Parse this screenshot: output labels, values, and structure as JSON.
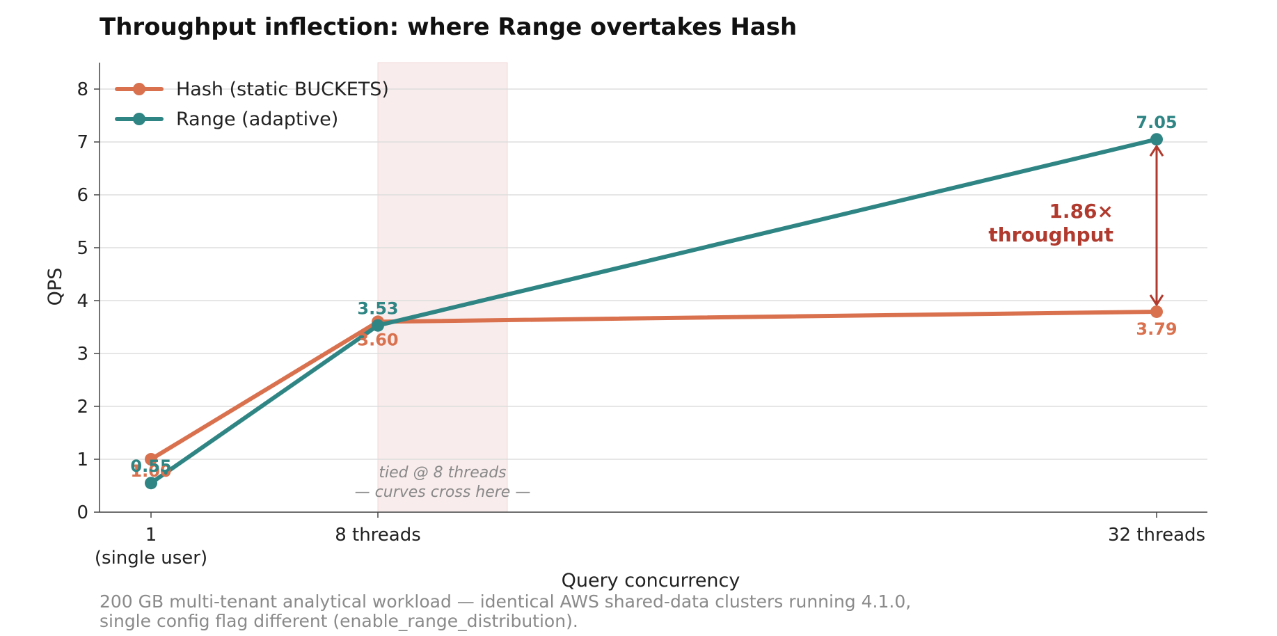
{
  "chart_data": {
    "type": "line",
    "title": "Throughput inflection: where Range overtakes Hash",
    "xlabel": "Query concurrency",
    "ylabel": "QPS",
    "ylim": [
      0,
      8.5
    ],
    "yticks": [
      0,
      1,
      2,
      3,
      4,
      5,
      6,
      7,
      8
    ],
    "x": [
      1,
      8,
      32
    ],
    "categories": [
      "1\n(single user)",
      "8 threads",
      "32 threads"
    ],
    "series": [
      {
        "name": "Hash (static BUCKETS)",
        "color": "#d9714e",
        "values": [
          1.0,
          3.6,
          3.79
        ],
        "labels": [
          "1.00",
          "3.60",
          "3.79"
        ]
      },
      {
        "name": "Range (adaptive)",
        "color": "#2e8584",
        "values": [
          0.55,
          3.53,
          7.05
        ],
        "labels": [
          "0.55",
          "3.53",
          "7.05"
        ]
      }
    ],
    "legend_position": "top-left",
    "grid": "horizontal",
    "highlight_band": {
      "x_from": 8,
      "x_to": 13,
      "note_lines": [
        "tied @ 8 threads",
        "— curves cross here —"
      ]
    },
    "gap_annotation": {
      "x": 32,
      "from": 3.79,
      "to": 7.05,
      "lines": [
        "1.86×",
        "throughput"
      ],
      "color": "#b03a2e"
    }
  },
  "caption": [
    "200 GB multi-tenant analytical workload — identical AWS shared-data clusters running 4.1.0,",
    "single config flag different (enable_range_distribution)."
  ]
}
